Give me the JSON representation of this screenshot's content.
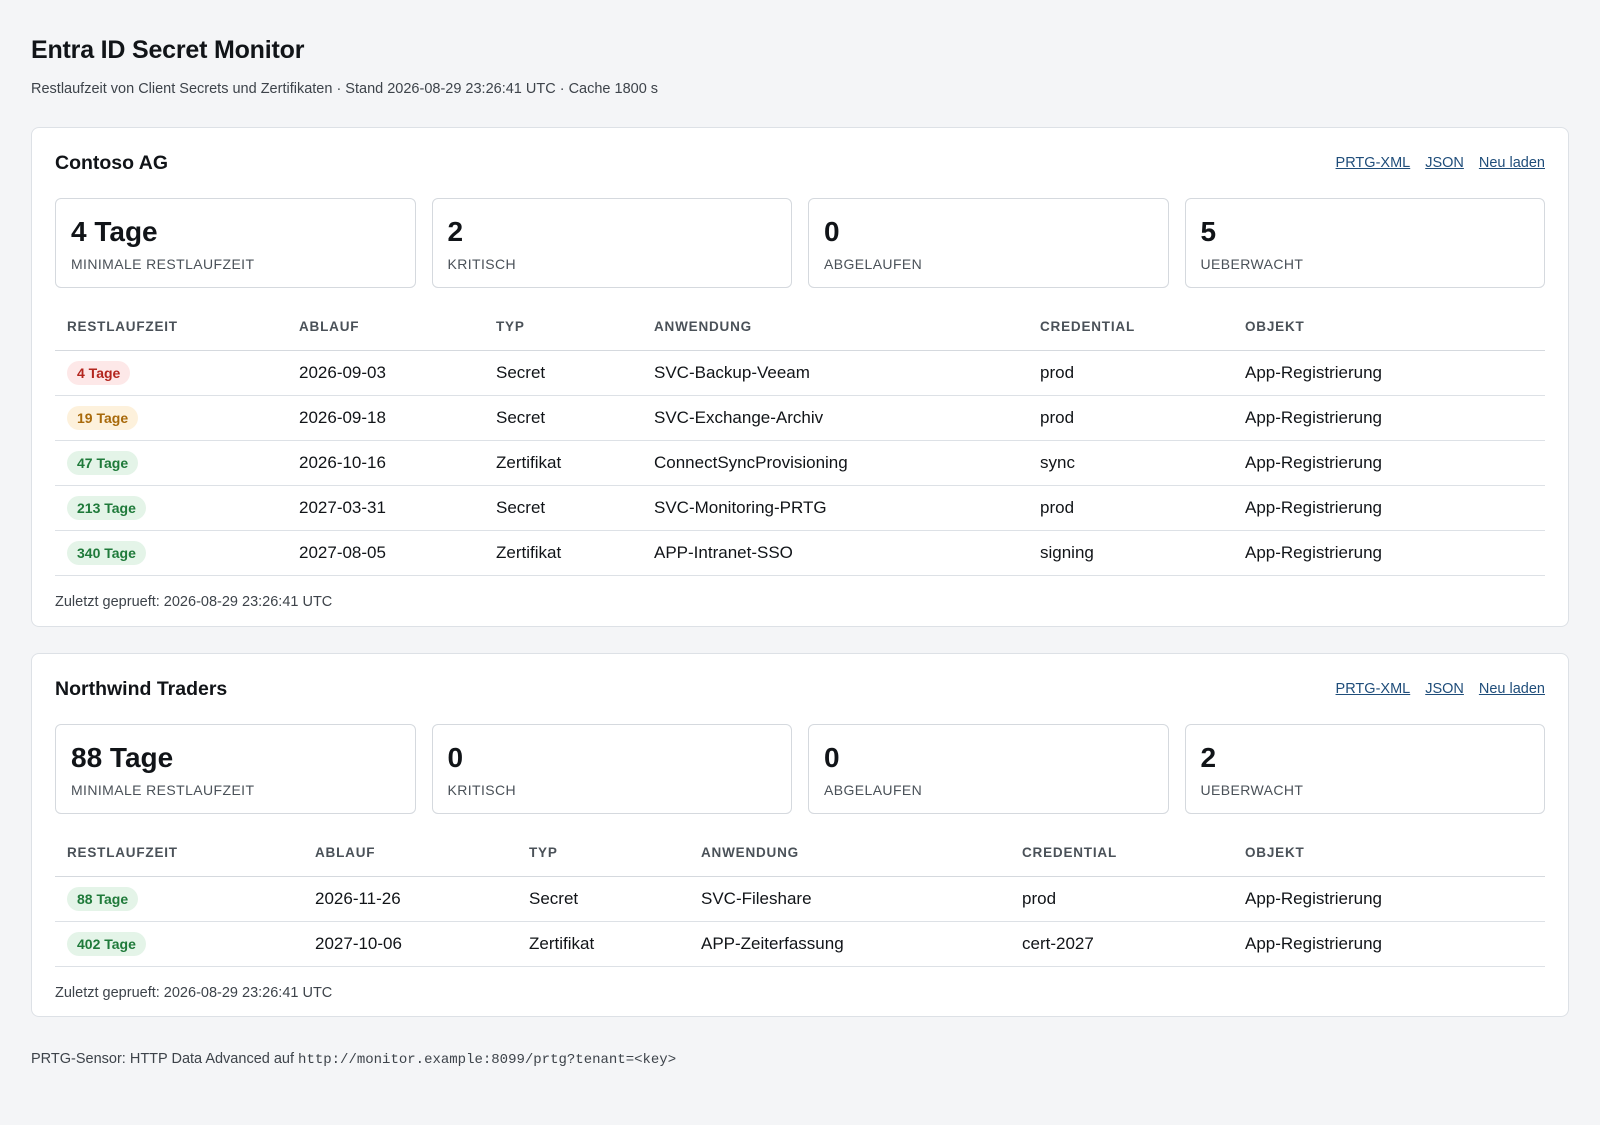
{
  "header": {
    "title": "Entra ID Secret Monitor",
    "subtitle": "Restlaufzeit von Client Secrets und Zertifikaten · Stand 2026-08-29 23:26:41 UTC · Cache 1800 s"
  },
  "columns": [
    "RESTLAUFZEIT",
    "ABLAUF",
    "TYP",
    "ANWENDUNG",
    "CREDENTIAL",
    "OBJEKT"
  ],
  "links": {
    "prtg": "PRTG-XML",
    "json": "JSON",
    "reload": "Neu laden"
  },
  "kpi_labels": {
    "min": "MINIMALE RESTLAUFZEIT",
    "critical": "KRITISCH",
    "expired": "ABGELAUFEN",
    "monitored": "UEBERWACHT"
  },
  "colors": {
    "red": "#b3261e",
    "amber": "#a8690a",
    "green": "#1f7a3a"
  },
  "tenants": [
    {
      "name": "Contoso AG",
      "kpis": {
        "min": "4 Tage",
        "critical": "2",
        "expired": "0",
        "monitored": "5"
      },
      "rows": [
        {
          "remaining": "4 Tage",
          "status": "red",
          "expiry": "2026-09-03",
          "type": "Secret",
          "app": "SVC-Backup-Veeam",
          "credential": "prod",
          "object": "App-Registrierung"
        },
        {
          "remaining": "19 Tage",
          "status": "amber",
          "expiry": "2026-09-18",
          "type": "Secret",
          "app": "SVC-Exchange-Archiv",
          "credential": "prod",
          "object": "App-Registrierung"
        },
        {
          "remaining": "47 Tage",
          "status": "green",
          "expiry": "2026-10-16",
          "type": "Zertifikat",
          "app": "ConnectSyncProvisioning",
          "credential": "sync",
          "object": "App-Registrierung"
        },
        {
          "remaining": "213 Tage",
          "status": "green",
          "expiry": "2027-03-31",
          "type": "Secret",
          "app": "SVC-Monitoring-PRTG",
          "credential": "prod",
          "object": "App-Registrierung"
        },
        {
          "remaining": "340 Tage",
          "status": "green",
          "expiry": "2027-08-05",
          "type": "Zertifikat",
          "app": "APP-Intranet-SSO",
          "credential": "signing",
          "object": "App-Registrierung"
        }
      ],
      "checked": "Zuletzt geprueft: 2026-08-29 23:26:41 UTC"
    },
    {
      "name": "Northwind Traders",
      "kpis": {
        "min": "88 Tage",
        "critical": "0",
        "expired": "0",
        "monitored": "2"
      },
      "rows": [
        {
          "remaining": "88 Tage",
          "status": "green",
          "expiry": "2026-11-26",
          "type": "Secret",
          "app": "SVC-Fileshare",
          "credential": "prod",
          "object": "App-Registrierung"
        },
        {
          "remaining": "402 Tage",
          "status": "green",
          "expiry": "2027-10-06",
          "type": "Zertifikat",
          "app": "APP-Zeiterfassung",
          "credential": "cert-2027",
          "object": "App-Registrierung"
        }
      ],
      "checked": "Zuletzt geprueft: 2026-08-29 23:26:41 UTC"
    }
  ],
  "footer": {
    "text": "PRTG-Sensor: HTTP Data Advanced auf",
    "url": "http://monitor.example:8099/prtg?tenant=<key>"
  }
}
